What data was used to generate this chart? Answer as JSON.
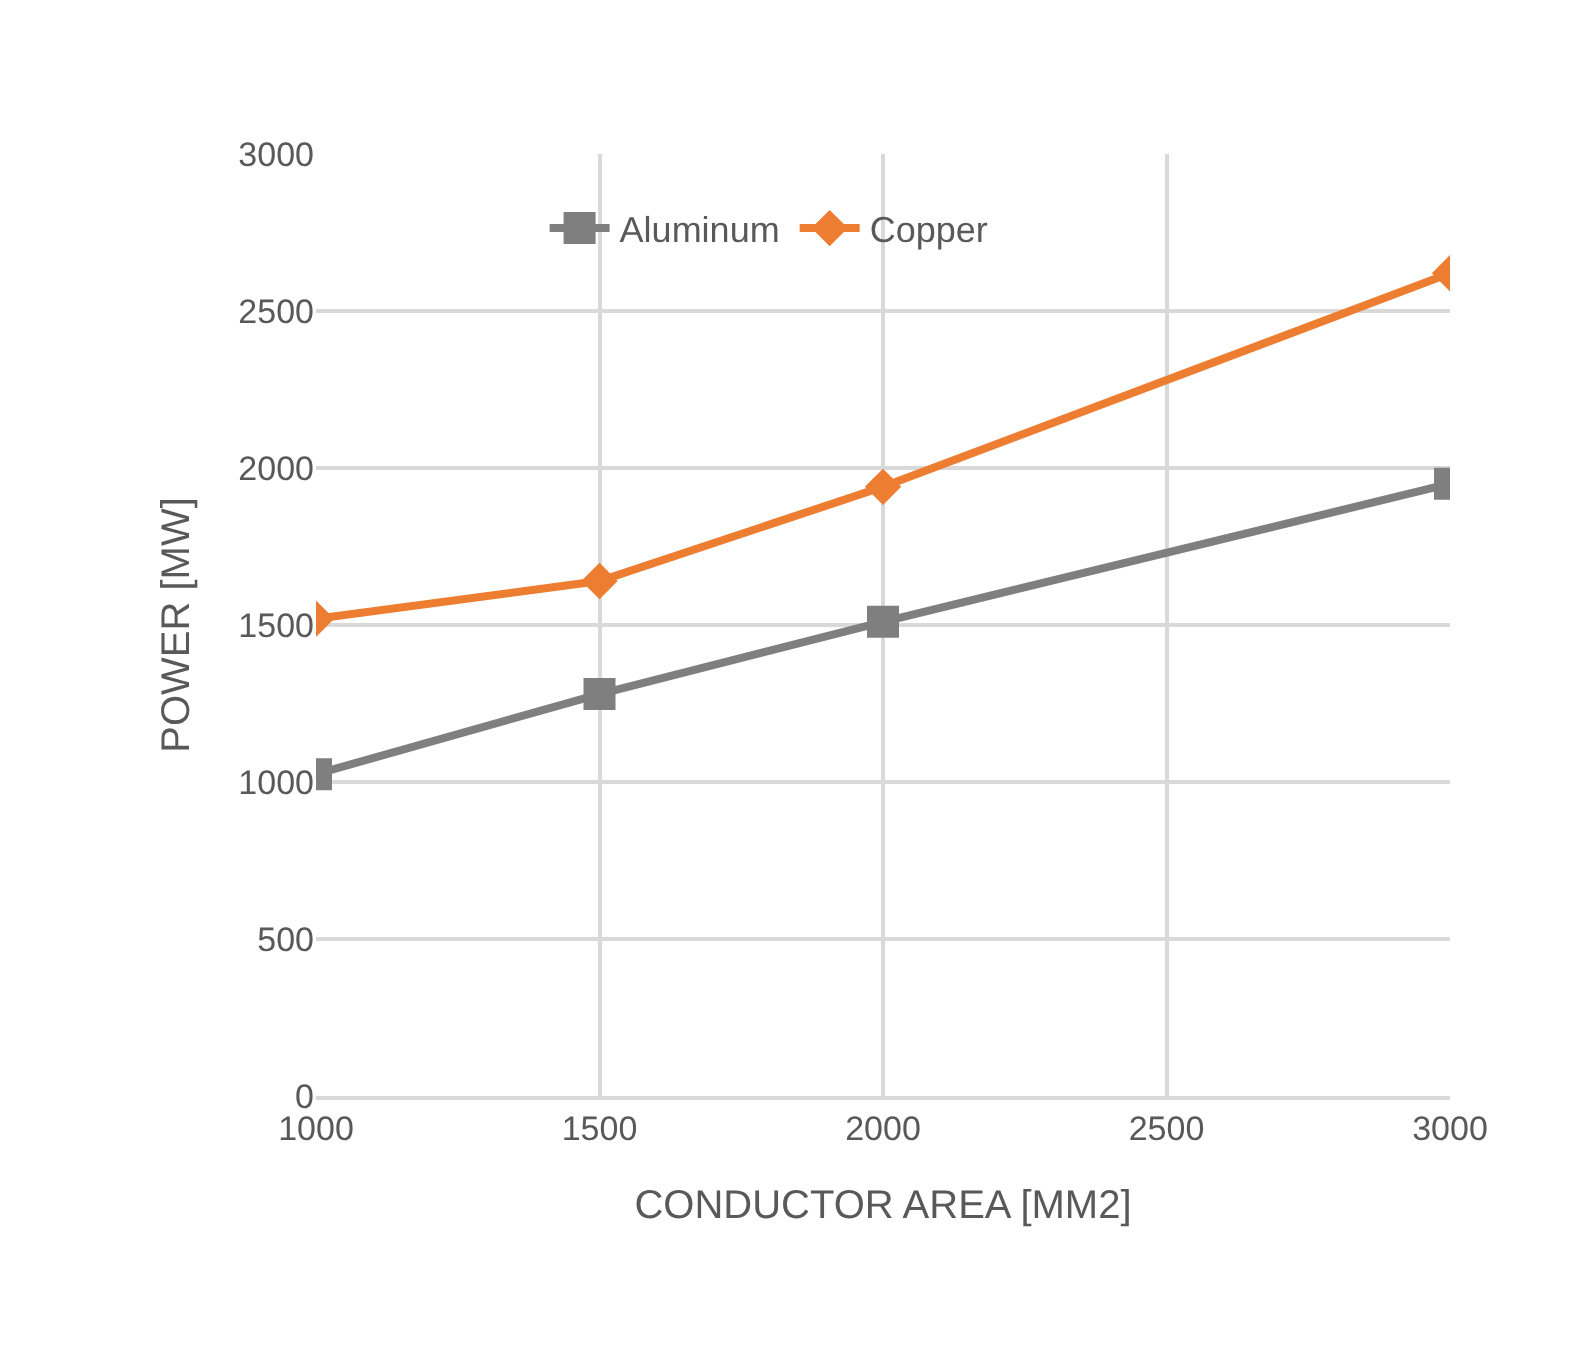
{
  "chart_data": {
    "type": "line",
    "xlabel": "CONDUCTOR AREA [MM2]",
    "ylabel": "POWER [MW]",
    "x": [
      1000,
      1500,
      2000,
      3000
    ],
    "series": [
      {
        "name": "Aluminum",
        "color": "#7f7f7f",
        "marker": "square",
        "values": [
          1025,
          1280,
          1510,
          1950
        ]
      },
      {
        "name": "Copper",
        "color": "#ed7d31",
        "marker": "diamond",
        "values": [
          1520,
          1640,
          1940,
          2620
        ]
      }
    ],
    "xlim": [
      1000,
      3000
    ],
    "xticks": [
      1000,
      1500,
      2000,
      2500,
      3000
    ],
    "ylim": [
      0,
      3000
    ],
    "yticks": [
      0,
      500,
      1000,
      1500,
      2000,
      2500,
      3000
    ],
    "grid": true,
    "legend": "top",
    "line_style": "solid"
  }
}
